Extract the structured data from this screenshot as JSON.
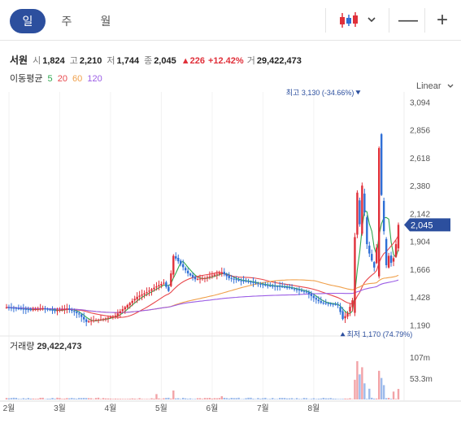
{
  "periods": [
    {
      "label": "일",
      "active": true
    },
    {
      "label": "주",
      "active": false
    },
    {
      "label": "월",
      "active": false
    }
  ],
  "toolbar": {
    "chart_type_icon": "candlestick-icon",
    "dropdown_icon": "chevron-down-icon",
    "zoom_out": "—",
    "zoom_in": "+"
  },
  "quote": {
    "name": "서원",
    "open_label": "시",
    "open": "1,824",
    "high_label": "고",
    "high": "2,210",
    "low_label": "저",
    "low": "1,744",
    "close_label": "종",
    "close": "2,045",
    "change": "▲226",
    "change_pct": "+12.42%",
    "volume_label": "거",
    "volume": "29,422,473"
  },
  "ma": {
    "label": "이동평균",
    "periods": [
      {
        "p": "5",
        "color": "#2fa84f"
      },
      {
        "p": "20",
        "color": "#e8474c"
      },
      {
        "p": "60",
        "color": "#f0a04b"
      },
      {
        "p": "120",
        "color": "#9b5de5"
      }
    ]
  },
  "scale_label": "Linear",
  "volume_panel": {
    "label": "거래량",
    "value": "29,422,473",
    "ticks": [
      "107m",
      "53.3m"
    ]
  },
  "colors": {
    "up": "#e0303a",
    "down": "#2f6fd6",
    "accent": "#2c4f9e"
  },
  "chart_data": {
    "type": "candlestick",
    "x_labels": [
      "2월",
      "3월",
      "4월",
      "5월",
      "6월",
      "7월",
      "8월"
    ],
    "y_ticks": [
      "3,094",
      "2,856",
      "2,618",
      "2,380",
      "2,142",
      "1,904",
      "1,666",
      "1,428",
      "1,190"
    ],
    "ylim": [
      1130,
      3180
    ],
    "last_price": "2,045",
    "max_annotation": {
      "label": "최고",
      "value": "3,130",
      "pct": "(-34.66%)"
    },
    "min_annotation": {
      "label": "최저",
      "value": "1,170",
      "pct": "(74.79%)"
    },
    "key_closes": [
      [
        0,
        1340
      ],
      [
        5,
        1330
      ],
      [
        10,
        1320
      ],
      [
        15,
        1330
      ],
      [
        20,
        1310
      ],
      [
        25,
        1330
      ],
      [
        30,
        1280
      ],
      [
        33,
        1215
      ],
      [
        36,
        1230
      ],
      [
        40,
        1240
      ],
      [
        45,
        1270
      ],
      [
        50,
        1360
      ],
      [
        54,
        1430
      ],
      [
        58,
        1470
      ],
      [
        62,
        1520
      ],
      [
        65,
        1550
      ],
      [
        67,
        1480
      ],
      [
        69,
        1780
      ],
      [
        72,
        1710
      ],
      [
        75,
        1630
      ],
      [
        78,
        1580
      ],
      [
        82,
        1590
      ],
      [
        86,
        1620
      ],
      [
        89,
        1640
      ],
      [
        92,
        1590
      ],
      [
        96,
        1570
      ],
      [
        100,
        1560
      ],
      [
        104,
        1540
      ],
      [
        108,
        1525
      ],
      [
        112,
        1520
      ],
      [
        116,
        1510
      ],
      [
        120,
        1490
      ],
      [
        124,
        1470
      ],
      [
        127,
        1420
      ],
      [
        130,
        1380
      ],
      [
        134,
        1370
      ],
      [
        137,
        1360
      ],
      [
        139,
        1240
      ],
      [
        141,
        1290
      ],
      [
        143,
        1400
      ],
      [
        144,
        1940
      ],
      [
        145,
        2320
      ],
      [
        146,
        2050
      ],
      [
        147,
        2380
      ],
      [
        148,
        2150
      ],
      [
        149,
        1880
      ],
      [
        150,
        1800
      ],
      [
        151,
        1740
      ],
      [
        152,
        1680
      ],
      [
        153,
        1850
      ],
      [
        154,
        2700
      ],
      [
        155,
        2300
      ],
      [
        156,
        1990
      ],
      [
        157,
        1700
      ],
      [
        158,
        1780
      ],
      [
        159,
        1720
      ],
      [
        160,
        1760
      ],
      [
        161,
        1880
      ],
      [
        162,
        2045
      ]
    ],
    "volume_spikes": [
      [
        20,
        2
      ],
      [
        40,
        4
      ],
      [
        62,
        15
      ],
      [
        69,
        25
      ],
      [
        89,
        9
      ],
      [
        144,
        55
      ],
      [
        145,
        107
      ],
      [
        146,
        70
      ],
      [
        147,
        90
      ],
      [
        148,
        45
      ],
      [
        150,
        30
      ],
      [
        154,
        80
      ],
      [
        155,
        60
      ],
      [
        156,
        40
      ],
      [
        160,
        22
      ],
      [
        162,
        29.4
      ]
    ],
    "volume_ylim": [
      0,
      125
    ]
  }
}
